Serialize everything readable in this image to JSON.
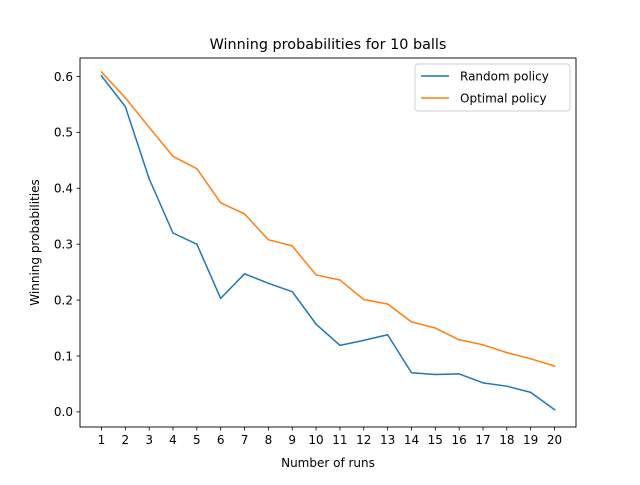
{
  "chart_data": {
    "type": "line",
    "title": "Winning probabilities for 10 balls",
    "xlabel": "Number of runs",
    "ylabel": "Winning probabilities",
    "x": [
      1,
      2,
      3,
      4,
      5,
      6,
      7,
      8,
      9,
      10,
      11,
      12,
      13,
      14,
      15,
      16,
      17,
      18,
      19,
      20
    ],
    "xlim": [
      0.1,
      20.9
    ],
    "ylim": [
      -0.027,
      0.633
    ],
    "yticks": [
      0.0,
      0.1,
      0.2,
      0.3,
      0.4,
      0.5,
      0.6
    ],
    "ytick_labels": [
      "0.0",
      "0.1",
      "0.2",
      "0.3",
      "0.4",
      "0.5",
      "0.6"
    ],
    "grid": false,
    "legend_position": "top-right",
    "series": [
      {
        "name": "Random policy",
        "color": "#1f77b4",
        "values": [
          0.601,
          0.546,
          0.417,
          0.32,
          0.3,
          0.203,
          0.247,
          0.23,
          0.215,
          0.157,
          0.119,
          0.128,
          0.138,
          0.07,
          0.067,
          0.068,
          0.052,
          0.046,
          0.035,
          0.004
        ]
      },
      {
        "name": "Optimal policy",
        "color": "#ff7f0e",
        "values": [
          0.608,
          0.562,
          0.509,
          0.457,
          0.435,
          0.374,
          0.354,
          0.308,
          0.297,
          0.245,
          0.236,
          0.201,
          0.193,
          0.161,
          0.15,
          0.129,
          0.12,
          0.106,
          0.095,
          0.082
        ]
      }
    ]
  }
}
